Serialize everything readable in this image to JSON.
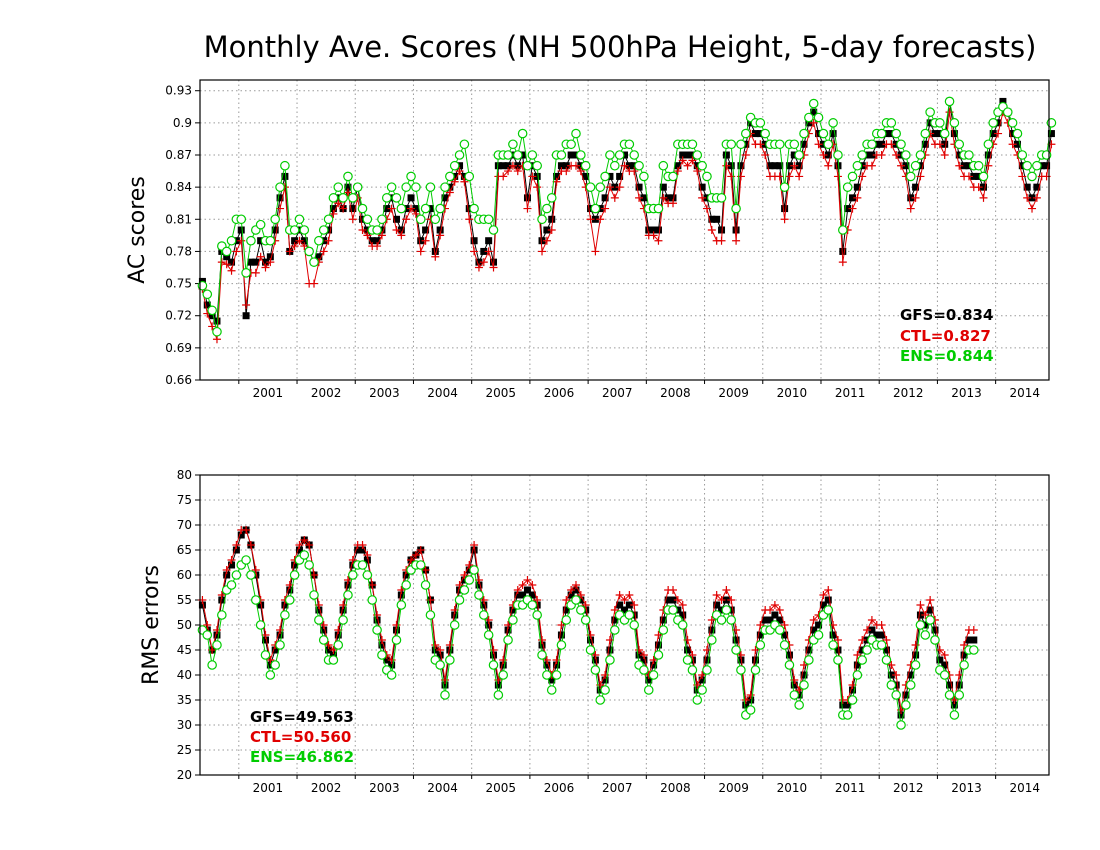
{
  "title": "Monthly Ave. Scores (NH 500hPa Height, 5-day forecasts)",
  "colors": {
    "GFS": "#000000",
    "CTL": "#e00000",
    "ENS": "#00cc00"
  },
  "chart_data": [
    {
      "type": "line",
      "ylabel": "AC scores",
      "xlabel": "",
      "ylim": [
        0.66,
        0.94
      ],
      "yticks": [
        "0.66",
        "0.69",
        "0.72",
        "0.75",
        "0.78",
        "0.81",
        "0.84",
        "0.87",
        "0.9",
        "0.93"
      ],
      "x_labels": [
        "2001",
        "2002",
        "2003",
        "2004",
        "2005",
        "2006",
        "2007",
        "2008",
        "2009",
        "2010",
        "2011",
        "2012",
        "2013",
        "2014"
      ],
      "x_start": "2000-05",
      "x_end": "2014-11",
      "grid": true,
      "legend_position": "bottom-right",
      "stats": [
        {
          "name": "GFS",
          "text": "GFS=0.834"
        },
        {
          "name": "CTL",
          "text": "CTL=0.827"
        },
        {
          "name": "ENS",
          "text": "ENS=0.844"
        }
      ],
      "series": [
        {
          "name": "GFS",
          "marker": "square",
          "values": [
            0.752,
            0.73,
            0.72,
            0.715,
            0.78,
            0.775,
            0.77,
            0.79,
            0.8,
            0.72,
            0.77,
            0.77,
            0.79,
            0.77,
            0.775,
            0.8,
            0.83,
            0.85,
            0.78,
            0.79,
            0.8,
            0.79,
            0.78,
            0.77,
            0.775,
            0.79,
            0.8,
            0.82,
            0.83,
            0.82,
            0.84,
            0.82,
            0.84,
            0.81,
            0.8,
            0.79,
            0.79,
            0.8,
            0.82,
            0.83,
            0.81,
            0.8,
            0.82,
            0.83,
            0.82,
            0.79,
            0.8,
            0.82,
            0.78,
            0.8,
            0.83,
            0.84,
            0.85,
            0.86,
            0.85,
            0.82,
            0.79,
            0.77,
            0.78,
            0.79,
            0.77,
            0.86,
            0.86,
            0.86,
            0.87,
            0.86,
            0.87,
            0.83,
            0.86,
            0.85,
            0.79,
            0.8,
            0.81,
            0.85,
            0.86,
            0.86,
            0.87,
            0.87,
            0.86,
            0.85,
            0.82,
            0.81,
            0.82,
            0.83,
            0.85,
            0.84,
            0.85,
            0.87,
            0.86,
            0.86,
            0.84,
            0.83,
            0.8,
            0.8,
            0.8,
            0.84,
            0.83,
            0.83,
            0.86,
            0.87,
            0.87,
            0.87,
            0.86,
            0.84,
            0.83,
            0.81,
            0.81,
            0.8,
            0.87,
            0.86,
            0.8,
            0.86,
            0.88,
            0.9,
            0.89,
            0.89,
            0.88,
            0.86,
            0.86,
            0.86,
            0.82,
            0.86,
            0.87,
            0.86,
            0.88,
            0.9,
            0.91,
            0.89,
            0.88,
            0.87,
            0.89,
            0.86,
            0.78,
            0.82,
            0.83,
            0.84,
            0.86,
            0.87,
            0.87,
            0.88,
            0.88,
            0.89,
            0.89,
            0.88,
            0.87,
            0.86,
            0.83,
            0.84,
            0.86,
            0.88,
            0.9,
            0.89,
            0.89,
            0.88,
            0.92,
            0.89,
            0.87,
            0.86,
            0.86,
            0.85,
            0.85,
            0.84,
            0.87,
            0.89,
            0.9,
            0.92,
            0.91,
            0.89,
            0.88,
            0.86,
            0.84,
            0.83,
            0.84,
            0.86,
            0.86,
            0.89
          ]
        },
        {
          "name": "CTL",
          "marker": "plus",
          "values": [
            0.745,
            0.722,
            0.71,
            0.698,
            0.77,
            0.768,
            0.762,
            0.78,
            0.79,
            0.73,
            0.76,
            0.76,
            0.775,
            0.765,
            0.77,
            0.79,
            0.82,
            0.84,
            0.78,
            0.785,
            0.79,
            0.785,
            0.75,
            0.75,
            0.77,
            0.78,
            0.79,
            0.815,
            0.825,
            0.82,
            0.835,
            0.81,
            0.83,
            0.8,
            0.795,
            0.785,
            0.785,
            0.795,
            0.81,
            0.82,
            0.8,
            0.795,
            0.81,
            0.82,
            0.815,
            0.78,
            0.79,
            0.81,
            0.775,
            0.795,
            0.82,
            0.835,
            0.845,
            0.855,
            0.845,
            0.81,
            0.78,
            0.765,
            0.77,
            0.78,
            0.765,
            0.85,
            0.85,
            0.855,
            0.86,
            0.855,
            0.86,
            0.82,
            0.85,
            0.84,
            0.78,
            0.79,
            0.8,
            0.845,
            0.855,
            0.855,
            0.86,
            0.86,
            0.855,
            0.84,
            0.81,
            0.78,
            0.81,
            0.82,
            0.84,
            0.83,
            0.84,
            0.86,
            0.855,
            0.855,
            0.83,
            0.82,
            0.795,
            0.795,
            0.79,
            0.83,
            0.825,
            0.825,
            0.855,
            0.865,
            0.86,
            0.865,
            0.855,
            0.83,
            0.82,
            0.8,
            0.79,
            0.79,
            0.86,
            0.85,
            0.79,
            0.85,
            0.87,
            0.89,
            0.88,
            0.88,
            0.87,
            0.85,
            0.85,
            0.85,
            0.81,
            0.85,
            0.86,
            0.85,
            0.87,
            0.89,
            0.9,
            0.88,
            0.87,
            0.86,
            0.88,
            0.85,
            0.77,
            0.8,
            0.82,
            0.83,
            0.85,
            0.86,
            0.86,
            0.87,
            0.87,
            0.88,
            0.88,
            0.87,
            0.86,
            0.85,
            0.82,
            0.83,
            0.85,
            0.87,
            0.89,
            0.88,
            0.88,
            0.87,
            0.91,
            0.88,
            0.86,
            0.85,
            0.85,
            0.84,
            0.84,
            0.83,
            0.86,
            0.88,
            0.89,
            0.91,
            0.9,
            0.88,
            0.87,
            0.85,
            0.83,
            0.82,
            0.83,
            0.85,
            0.85,
            0.88
          ]
        },
        {
          "name": "ENS",
          "marker": "circle",
          "values": [
            0.748,
            0.74,
            0.725,
            0.705,
            0.785,
            0.78,
            0.79,
            0.81,
            0.81,
            0.76,
            0.79,
            0.8,
            0.805,
            0.79,
            0.79,
            0.81,
            0.84,
            0.86,
            0.8,
            0.8,
            0.81,
            0.8,
            0.78,
            0.77,
            0.79,
            0.8,
            0.81,
            0.83,
            0.84,
            0.83,
            0.85,
            0.83,
            0.84,
            0.82,
            0.81,
            0.8,
            0.8,
            0.81,
            0.83,
            0.84,
            0.83,
            0.82,
            0.84,
            0.85,
            0.84,
            0.81,
            0.82,
            0.84,
            0.81,
            0.82,
            0.84,
            0.85,
            0.86,
            0.87,
            0.88,
            0.85,
            0.82,
            0.81,
            0.81,
            0.81,
            0.8,
            0.87,
            0.87,
            0.87,
            0.88,
            0.87,
            0.89,
            0.86,
            0.87,
            0.86,
            0.81,
            0.82,
            0.83,
            0.87,
            0.87,
            0.88,
            0.88,
            0.89,
            0.87,
            0.86,
            0.84,
            0.82,
            0.84,
            0.85,
            0.87,
            0.86,
            0.87,
            0.88,
            0.88,
            0.87,
            0.86,
            0.85,
            0.82,
            0.82,
            0.82,
            0.86,
            0.85,
            0.85,
            0.88,
            0.88,
            0.88,
            0.88,
            0.87,
            0.86,
            0.85,
            0.83,
            0.83,
            0.83,
            0.88,
            0.88,
            0.82,
            0.88,
            0.89,
            0.905,
            0.9,
            0.9,
            0.89,
            0.88,
            0.88,
            0.88,
            0.84,
            0.88,
            0.88,
            0.87,
            0.89,
            0.905,
            0.918,
            0.905,
            0.89,
            0.88,
            0.9,
            0.87,
            0.8,
            0.84,
            0.85,
            0.86,
            0.87,
            0.88,
            0.88,
            0.89,
            0.89,
            0.9,
            0.9,
            0.89,
            0.88,
            0.87,
            0.85,
            0.86,
            0.87,
            0.89,
            0.91,
            0.9,
            0.9,
            0.89,
            0.92,
            0.9,
            0.88,
            0.87,
            0.87,
            0.86,
            0.86,
            0.85,
            0.88,
            0.9,
            0.91,
            0.915,
            0.91,
            0.9,
            0.89,
            0.87,
            0.86,
            0.85,
            0.86,
            0.87,
            0.87,
            0.9
          ]
        }
      ]
    },
    {
      "type": "line",
      "ylabel": "RMS errors",
      "xlabel": "",
      "ylim": [
        20,
        80
      ],
      "yticks": [
        "20",
        "25",
        "30",
        "35",
        "40",
        "45",
        "50",
        "55",
        "60",
        "65",
        "70",
        "75",
        "80"
      ],
      "x_labels": [
        "2001",
        "2002",
        "2003",
        "2004",
        "2005",
        "2006",
        "2007",
        "2008",
        "2009",
        "2010",
        "2011",
        "2012",
        "2013",
        "2014"
      ],
      "x_start": "2000-05",
      "x_end": "2014-11",
      "grid": true,
      "legend_position": "bottom-left",
      "stats": [
        {
          "name": "GFS",
          "text": "GFS=49.563"
        },
        {
          "name": "CTL",
          "text": "CTL=50.560"
        },
        {
          "name": "ENS",
          "text": "ENS=46.862"
        }
      ],
      "series": [
        {
          "name": "GFS",
          "marker": "square",
          "values": [
            54,
            49,
            45,
            48,
            55,
            60,
            62,
            65,
            68,
            69,
            66,
            60,
            54,
            47,
            42,
            45,
            48,
            54,
            57,
            62,
            65,
            67,
            66,
            60,
            53,
            49,
            45,
            44,
            48,
            53,
            58,
            62,
            65,
            65,
            63,
            58,
            51,
            46,
            43,
            42,
            49,
            56,
            60,
            63,
            64,
            65,
            61,
            55,
            45,
            44,
            38,
            45,
            52,
            57,
            59,
            61,
            65,
            58,
            54,
            50,
            44,
            38,
            42,
            49,
            53,
            56,
            56,
            57,
            56,
            54,
            46,
            42,
            39,
            42,
            48,
            53,
            56,
            57,
            55,
            53,
            47,
            43,
            37,
            39,
            45,
            51,
            54,
            53,
            54,
            52,
            44,
            43,
            39,
            42,
            46,
            51,
            55,
            55,
            53,
            52,
            45,
            43,
            37,
            39,
            43,
            49,
            54,
            53,
            55,
            53,
            47,
            43,
            34,
            35,
            43,
            48,
            51,
            51,
            52,
            51,
            48,
            44,
            38,
            36,
            40,
            45,
            49,
            50,
            54,
            55,
            48,
            45,
            34,
            34,
            37,
            42,
            45,
            47,
            49,
            48,
            48,
            45,
            40,
            38,
            32,
            36,
            40,
            44,
            52,
            50,
            53,
            49,
            43,
            42,
            38,
            34,
            38,
            44,
            47,
            47
          ]
        },
        {
          "name": "CTL",
          "marker": "plus",
          "values": [
            55,
            50,
            45,
            49,
            56,
            61,
            63,
            66,
            69,
            69,
            66,
            61,
            55,
            48,
            43,
            46,
            49,
            55,
            58,
            63,
            66,
            67,
            66,
            60,
            54,
            50,
            46,
            45,
            49,
            54,
            59,
            63,
            66,
            66,
            64,
            58,
            52,
            47,
            44,
            43,
            50,
            57,
            61,
            63,
            64,
            65,
            61,
            55,
            46,
            45,
            39,
            46,
            53,
            58,
            60,
            62,
            66,
            59,
            55,
            51,
            45,
            39,
            43,
            50,
            54,
            57,
            58,
            59,
            58,
            55,
            47,
            43,
            40,
            43,
            50,
            55,
            57,
            58,
            56,
            54,
            48,
            44,
            38,
            40,
            47,
            53,
            56,
            55,
            56,
            54,
            45,
            44,
            40,
            43,
            48,
            53,
            57,
            57,
            55,
            54,
            47,
            44,
            38,
            40,
            45,
            51,
            56,
            55,
            57,
            55,
            49,
            44,
            35,
            36,
            45,
            50,
            53,
            53,
            54,
            53,
            50,
            46,
            39,
            37,
            42,
            47,
            51,
            52,
            56,
            57,
            50,
            47,
            35,
            35,
            38,
            44,
            47,
            49,
            51,
            50,
            50,
            47,
            42,
            40,
            33,
            38,
            42,
            46,
            54,
            52,
            55,
            51,
            45,
            44,
            40,
            35,
            40,
            46,
            49,
            49
          ]
        },
        {
          "name": "ENS",
          "marker": "circle",
          "values": [
            49,
            48,
            42,
            46,
            52,
            57,
            58,
            60,
            62,
            63,
            60,
            55,
            50,
            44,
            40,
            42,
            46,
            52,
            55,
            60,
            63,
            64,
            62,
            56,
            51,
            47,
            43,
            43,
            46,
            51,
            56,
            60,
            62,
            62,
            60,
            55,
            49,
            44,
            41,
            40,
            47,
            54,
            58,
            61,
            62,
            62,
            58,
            52,
            43,
            42,
            36,
            43,
            50,
            55,
            57,
            59,
            61,
            56,
            52,
            48,
            42,
            36,
            40,
            47,
            51,
            54,
            54,
            55,
            54,
            52,
            44,
            40,
            37,
            40,
            46,
            51,
            54,
            55,
            53,
            51,
            45,
            41,
            35,
            37,
            43,
            49,
            52,
            51,
            52,
            50,
            42,
            41,
            37,
            40,
            44,
            49,
            53,
            53,
            51,
            50,
            43,
            41,
            35,
            37,
            41,
            47,
            52,
            51,
            53,
            51,
            45,
            41,
            32,
            33,
            41,
            46,
            49,
            49,
            50,
            49,
            46,
            42,
            36,
            34,
            38,
            43,
            47,
            48,
            52,
            53,
            46,
            43,
            32,
            32,
            35,
            40,
            43,
            45,
            47,
            46,
            46,
            43,
            38,
            36,
            30,
            34,
            38,
            42,
            50,
            48,
            51,
            47,
            41,
            40,
            36,
            32,
            36,
            42,
            45,
            45
          ]
        }
      ]
    }
  ]
}
